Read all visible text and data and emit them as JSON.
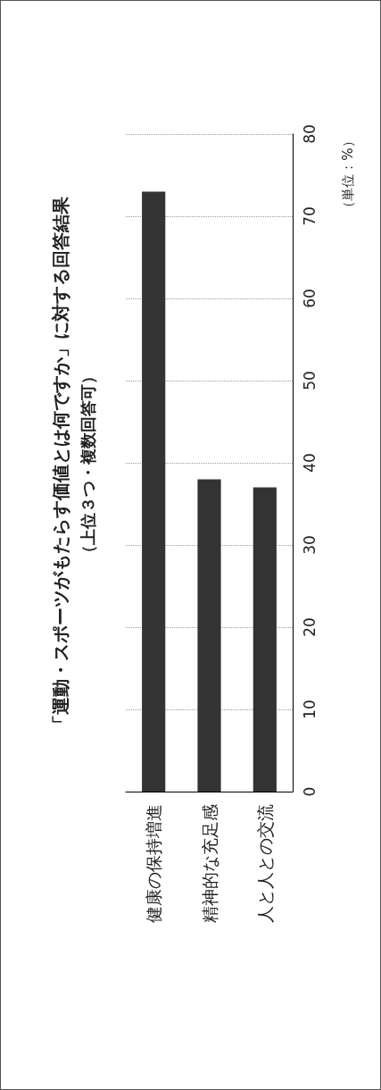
{
  "chart_data": {
    "type": "bar",
    "title": "「運動・スポーツがもたらす価値とは何ですか」に対する回答結果",
    "subtitle": "（上位３つ・複数回答可）",
    "categories": [
      "健康の保持増進",
      "精神的な充足感",
      "人と人との交流"
    ],
    "values": [
      73,
      38,
      37
    ],
    "color": "#333333",
    "ylim": [
      0,
      80
    ],
    "yticks": [
      0,
      10,
      20,
      30,
      40,
      50,
      60,
      70,
      80
    ],
    "grid": "y",
    "annotations": [
      "（単位：%）"
    ]
  }
}
